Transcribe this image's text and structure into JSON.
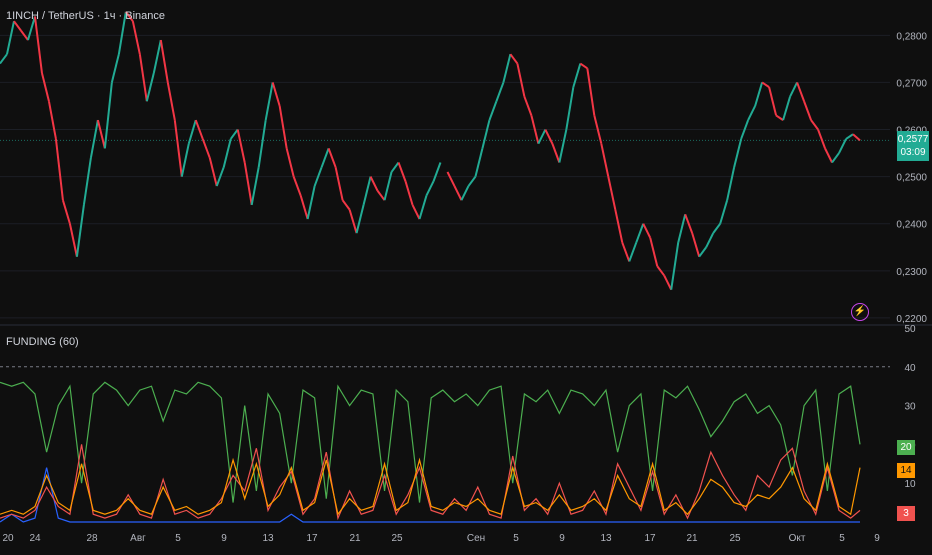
{
  "header": {
    "title": "1INCH / TetherUS · 1ч · Binance"
  },
  "indicator": {
    "title": "FUNDING (60)"
  },
  "badges": {
    "last_price": "0,2577",
    "countdown": "03:09",
    "green_value": "20",
    "orange_value": "14",
    "red_value": "3"
  },
  "colors": {
    "background": "#0f0f0f",
    "up": "#22ab94",
    "down": "#f23645",
    "green_line": "#4caf50",
    "orange_line": "#ff9800",
    "red_line": "#f0524f",
    "blue_line": "#2962ff",
    "alert_icon": "#c445e8"
  },
  "icons": [
    "lightning-alert-icon"
  ],
  "chart_data": [
    {
      "type": "line",
      "title": "1INCH / TetherUS · 1ч · Binance",
      "price_axis_ticks": [
        "0,2800",
        "0,2700",
        "0,2600",
        "0,2500",
        "0,2400",
        "0,2300",
        "0,2200"
      ],
      "ylim": [
        0.2185,
        0.2875
      ],
      "x_ticks": [
        "20",
        "24",
        "28",
        "Авг",
        "5",
        "9",
        "13",
        "17",
        "21",
        "25",
        "Сен",
        "5",
        "9",
        "13",
        "17",
        "21",
        "25",
        "Окт",
        "5",
        "9"
      ],
      "last_value": 0.2577,
      "series": [
        {
          "x": [
            0,
            3,
            6,
            9,
            12,
            15,
            18,
            21,
            24,
            27,
            30,
            33,
            36,
            39,
            42,
            45,
            48,
            51,
            54,
            57,
            60,
            63,
            66,
            69,
            72,
            75,
            78,
            81,
            84,
            87,
            90,
            93,
            96,
            99,
            102,
            105,
            108,
            111,
            114,
            117,
            120,
            123,
            126,
            129,
            132,
            135,
            138,
            141,
            144,
            147,
            150,
            153,
            156,
            159,
            162,
            165,
            168,
            171,
            174,
            177,
            180,
            183,
            186,
            189
          ],
          "values": [
            0.274,
            0.276,
            0.283,
            0.281,
            0.279,
            0.284,
            0.272,
            0.266,
            0.258,
            0.245,
            0.24,
            0.233,
            0.244,
            0.254,
            0.262,
            0.256,
            0.27,
            0.276,
            0.285,
            0.283,
            0.276,
            0.266,
            0.272,
            0.279,
            0.27,
            0.262,
            0.25,
            0.257,
            0.262,
            0.258,
            0.254,
            0.248,
            0.252,
            0.258,
            0.26,
            0.253,
            0.244,
            0.252,
            0.262,
            0.27,
            0.265,
            0.256,
            0.25,
            0.246,
            0.241,
            0.248,
            0.252,
            0.256,
            0.252,
            0.245,
            0.243,
            0.238,
            0.244,
            0.25,
            0.247,
            0.245,
            0.251,
            0.253,
            0.249,
            0.244,
            0.241,
            0.246,
            0.249,
            0.253
          ]
        },
        {
          "x": [
            192,
            195,
            198,
            201,
            204,
            207,
            210,
            213,
            216,
            219,
            222,
            225,
            228,
            231,
            234,
            237,
            240,
            243,
            246,
            249,
            252,
            255,
            258,
            261,
            264,
            267,
            270,
            273,
            276,
            279,
            282,
            285,
            288,
            291,
            294,
            297,
            300,
            303,
            306,
            309,
            312,
            315,
            318,
            321,
            324,
            327,
            330,
            333,
            336,
            339,
            342,
            345,
            348,
            351,
            354,
            357,
            360,
            363,
            366,
            369
          ],
          "values": [
            0.251,
            0.248,
            0.245,
            0.248,
            0.25,
            0.256,
            0.262,
            0.266,
            0.27,
            0.276,
            0.274,
            0.267,
            0.263,
            0.257,
            0.26,
            0.257,
            0.253,
            0.26,
            0.269,
            0.274,
            0.273,
            0.263,
            0.257,
            0.25,
            0.243,
            0.236,
            0.232,
            0.236,
            0.24,
            0.237,
            0.231,
            0.229,
            0.226,
            0.236,
            0.242,
            0.238,
            0.233,
            0.235,
            0.238,
            0.24,
            0.245,
            0.252,
            0.258,
            0.262,
            0.265,
            0.27,
            0.269,
            0.263,
            0.262,
            0.267,
            0.27,
            0.266,
            0.262,
            0.26,
            0.256,
            0.253,
            0.255,
            0.258,
            0.259,
            0.2577
          ]
        }
      ]
    },
    {
      "type": "line",
      "title": "FUNDING (60)",
      "y_ticks": [
        "50",
        "40",
        "30",
        "20",
        "10"
      ],
      "ylim": [
        0,
        50
      ],
      "reference_line": 40,
      "last_values": {
        "green": 20,
        "orange": 14,
        "red": 3
      },
      "x": [
        0,
        5,
        10,
        15,
        20,
        25,
        30,
        35,
        40,
        45,
        50,
        55,
        60,
        65,
        70,
        75,
        80,
        85,
        90,
        95,
        100,
        105,
        110,
        115,
        120,
        125,
        130,
        135,
        140,
        145,
        150,
        155,
        160,
        165,
        170,
        175,
        180,
        185,
        190,
        195,
        200,
        205,
        210,
        215,
        220,
        225,
        230,
        235,
        240,
        245,
        250,
        255,
        260,
        265,
        270,
        275,
        280,
        285,
        290,
        295,
        300,
        305,
        310,
        315,
        320,
        325,
        330,
        335,
        340,
        345,
        350,
        355,
        360,
        365,
        369
      ],
      "series": [
        {
          "name": "green",
          "values": [
            36,
            35,
            36,
            33,
            18,
            30,
            35,
            10,
            33,
            36,
            34,
            30,
            34,
            35,
            26,
            34,
            33,
            36,
            35,
            32,
            5,
            30,
            8,
            33,
            28,
            10,
            34,
            32,
            6,
            35,
            30,
            34,
            33,
            8,
            34,
            31,
            5,
            32,
            34,
            31,
            33,
            30,
            34,
            35,
            10,
            33,
            31,
            34,
            28,
            34,
            33,
            30,
            34,
            18,
            30,
            33,
            8,
            34,
            32,
            35,
            29,
            22,
            26,
            31,
            33,
            28,
            30,
            25,
            12,
            30,
            34,
            8,
            33,
            35,
            20
          ]
        },
        {
          "name": "orange",
          "values": [
            2,
            3,
            2,
            4,
            12,
            5,
            3,
            15,
            3,
            2,
            3,
            6,
            3,
            2,
            9,
            3,
            4,
            2,
            3,
            5,
            16,
            6,
            15,
            4,
            7,
            14,
            3,
            5,
            16,
            2,
            6,
            3,
            4,
            15,
            3,
            5,
            16,
            4,
            3,
            5,
            4,
            6,
            3,
            2,
            14,
            4,
            5,
            3,
            7,
            3,
            4,
            6,
            3,
            12,
            6,
            4,
            15,
            3,
            5,
            2,
            6,
            11,
            9,
            5,
            4,
            7,
            6,
            9,
            14,
            6,
            3,
            15,
            4,
            2,
            14
          ]
        },
        {
          "name": "red",
          "values": [
            1,
            2,
            1,
            3,
            9,
            4,
            2,
            20,
            2,
            1,
            2,
            7,
            2,
            1,
            11,
            2,
            3,
            1,
            2,
            6,
            12,
            8,
            19,
            3,
            9,
            13,
            2,
            6,
            18,
            1,
            8,
            2,
            3,
            12,
            2,
            7,
            14,
            3,
            2,
            6,
            3,
            9,
            2,
            1,
            17,
            3,
            6,
            2,
            10,
            2,
            3,
            8,
            2,
            15,
            9,
            3,
            13,
            2,
            7,
            1,
            8,
            18,
            12,
            7,
            3,
            12,
            9,
            16,
            19,
            8,
            2,
            14,
            3,
            1,
            3
          ]
        },
        {
          "name": "blue",
          "values": [
            0,
            2,
            0,
            1,
            14,
            1,
            0,
            0,
            0,
            0,
            0,
            0,
            0,
            0,
            0,
            0,
            0,
            0,
            0,
            0,
            0,
            0,
            0,
            0,
            0,
            2,
            0,
            0,
            0,
            0,
            0,
            0,
            0,
            0,
            0,
            0,
            0,
            0,
            0,
            0,
            0,
            0,
            0,
            0,
            0,
            0,
            0,
            0,
            0,
            0,
            0,
            0,
            0,
            0,
            0,
            0,
            0,
            0,
            0,
            0,
            0,
            0,
            0,
            0,
            0,
            0,
            0,
            0,
            0,
            0,
            0,
            0,
            0,
            0,
            0
          ]
        }
      ]
    }
  ]
}
